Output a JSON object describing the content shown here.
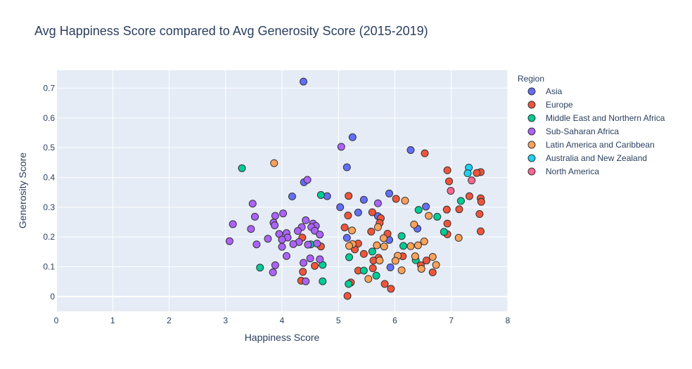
{
  "chart_data": {
    "type": "scatter",
    "title": "Avg Happiness Score compared to Avg Generosity Score (2015-2019)",
    "xlabel": "Happiness Score",
    "ylabel": "Generosity Score",
    "xlim": [
      0,
      8
    ],
    "ylim": [
      -0.05,
      0.76
    ],
    "x_ticks": [
      0,
      1,
      2,
      3,
      4,
      5,
      6,
      7,
      8
    ],
    "y_ticks": [
      0,
      0.1,
      0.2,
      0.3,
      0.4,
      0.5,
      0.6,
      0.7
    ],
    "grid": true,
    "legend_title": "Region",
    "legend_placement": "top-right outside",
    "series": [
      {
        "name": "Asia",
        "color": "#636efa",
        "points": [
          [
            4.38,
            0.722
          ],
          [
            5.25,
            0.535
          ],
          [
            6.28,
            0.492
          ],
          [
            5.15,
            0.434
          ],
          [
            4.39,
            0.384
          ],
          [
            4.8,
            0.337
          ],
          [
            4.18,
            0.336
          ],
          [
            5.9,
            0.346
          ],
          [
            5.45,
            0.325
          ],
          [
            5.03,
            0.3
          ],
          [
            6.55,
            0.302
          ],
          [
            5.35,
            0.282
          ],
          [
            5.7,
            0.27
          ],
          [
            6.4,
            0.228
          ],
          [
            5.15,
            0.197
          ],
          [
            5.9,
            0.19
          ],
          [
            5.92,
            0.098
          ]
        ]
      },
      {
        "name": "Europe",
        "color": "#ef553b",
        "points": [
          [
            6.53,
            0.481
          ],
          [
            6.93,
            0.424
          ],
          [
            7.52,
            0.418
          ],
          [
            7.45,
            0.415
          ],
          [
            6.96,
            0.387
          ],
          [
            7.52,
            0.33
          ],
          [
            7.53,
            0.318
          ],
          [
            7.32,
            0.337
          ],
          [
            6.02,
            0.328
          ],
          [
            5.18,
            0.338
          ],
          [
            7.14,
            0.293
          ],
          [
            6.92,
            0.292
          ],
          [
            7.5,
            0.277
          ],
          [
            5.6,
            0.283
          ],
          [
            5.17,
            0.272
          ],
          [
            5.75,
            0.263
          ],
          [
            6.93,
            0.245
          ],
          [
            5.73,
            0.247
          ],
          [
            5.11,
            0.232
          ],
          [
            7.52,
            0.219
          ],
          [
            5.58,
            0.218
          ],
          [
            6.93,
            0.209
          ],
          [
            5.87,
            0.211
          ],
          [
            4.36,
            0.198
          ],
          [
            5.35,
            0.178
          ],
          [
            5.45,
            0.143
          ],
          [
            6.14,
            0.135
          ],
          [
            4.69,
            0.168
          ],
          [
            5.29,
            0.158
          ],
          [
            5.71,
            0.13
          ],
          [
            5.62,
            0.121
          ],
          [
            6.56,
            0.121
          ],
          [
            6.46,
            0.105
          ],
          [
            4.58,
            0.103
          ],
          [
            5.61,
            0.095
          ],
          [
            5.35,
            0.087
          ],
          [
            4.37,
            0.083
          ],
          [
            6.67,
            0.081
          ],
          [
            5.22,
            0.047
          ],
          [
            4.34,
            0.053
          ],
          [
            5.82,
            0.042
          ],
          [
            5.93,
            0.026
          ],
          [
            5.16,
            0.002
          ]
        ]
      },
      {
        "name": "Middle East and Northern Africa",
        "color": "#00cc96",
        "points": [
          [
            3.29,
            0.431
          ],
          [
            4.69,
            0.341
          ],
          [
            7.17,
            0.321
          ],
          [
            6.42,
            0.291
          ],
          [
            6.75,
            0.268
          ],
          [
            6.87,
            0.217
          ],
          [
            6.12,
            0.203
          ],
          [
            6.15,
            0.17
          ],
          [
            5.6,
            0.151
          ],
          [
            6.37,
            0.122
          ],
          [
            5.19,
            0.132
          ],
          [
            4.72,
            0.106
          ],
          [
            3.61,
            0.097
          ],
          [
            5.45,
            0.087
          ],
          [
            5.67,
            0.07
          ],
          [
            4.72,
            0.051
          ],
          [
            5.18,
            0.042
          ],
          [
            4.51,
            0.175
          ]
        ]
      },
      {
        "name": "Sub-Saharan Africa",
        "color": "#ab63fa",
        "points": [
          [
            5.05,
            0.503
          ],
          [
            4.45,
            0.392
          ],
          [
            3.48,
            0.312
          ],
          [
            5.7,
            0.313
          ],
          [
            3.52,
            0.268
          ],
          [
            4.02,
            0.279
          ],
          [
            3.88,
            0.271
          ],
          [
            4.42,
            0.256
          ],
          [
            3.85,
            0.248
          ],
          [
            3.13,
            0.243
          ],
          [
            4.55,
            0.245
          ],
          [
            3.87,
            0.239
          ],
          [
            4.6,
            0.237
          ],
          [
            4.35,
            0.233
          ],
          [
            3.45,
            0.227
          ],
          [
            4.52,
            0.233
          ],
          [
            4.28,
            0.22
          ],
          [
            4.08,
            0.213
          ],
          [
            4.58,
            0.221
          ],
          [
            3.95,
            0.21
          ],
          [
            4.67,
            0.208
          ],
          [
            4.1,
            0.198
          ],
          [
            3.75,
            0.194
          ],
          [
            4.0,
            0.191
          ],
          [
            3.07,
            0.186
          ],
          [
            4.3,
            0.183
          ],
          [
            4.2,
            0.176
          ],
          [
            4.46,
            0.174
          ],
          [
            3.55,
            0.175
          ],
          [
            4.0,
            0.167
          ],
          [
            4.62,
            0.178
          ],
          [
            4.08,
            0.136
          ],
          [
            4.5,
            0.128
          ],
          [
            4.67,
            0.125
          ],
          [
            4.38,
            0.113
          ],
          [
            3.88,
            0.105
          ],
          [
            3.84,
            0.081
          ],
          [
            4.42,
            0.051
          ]
        ]
      },
      {
        "name": "Latin America and Caribbean",
        "color": "#ffa15a",
        "points": [
          [
            3.86,
            0.448
          ],
          [
            6.18,
            0.322
          ],
          [
            6.6,
            0.271
          ],
          [
            5.7,
            0.233
          ],
          [
            6.34,
            0.242
          ],
          [
            7.13,
            0.197
          ],
          [
            5.8,
            0.196
          ],
          [
            6.52,
            0.185
          ],
          [
            5.25,
            0.176
          ],
          [
            5.19,
            0.17
          ],
          [
            5.68,
            0.172
          ],
          [
            6.41,
            0.172
          ],
          [
            6.28,
            0.169
          ],
          [
            5.81,
            0.168
          ],
          [
            6.05,
            0.137
          ],
          [
            6.36,
            0.135
          ],
          [
            6.67,
            0.133
          ],
          [
            5.73,
            0.121
          ],
          [
            6.01,
            0.12
          ],
          [
            6.73,
            0.106
          ],
          [
            6.47,
            0.093
          ],
          [
            6.12,
            0.088
          ],
          [
            5.53,
            0.059
          ],
          [
            5.24,
            0.222
          ]
        ]
      },
      {
        "name": "Australia and New Zealand",
        "color": "#19d3f3",
        "points": [
          [
            7.31,
            0.433
          ],
          [
            7.29,
            0.414
          ]
        ]
      },
      {
        "name": "North America",
        "color": "#ff6692",
        "points": [
          [
            6.99,
            0.355
          ],
          [
            7.36,
            0.39
          ]
        ]
      }
    ]
  }
}
